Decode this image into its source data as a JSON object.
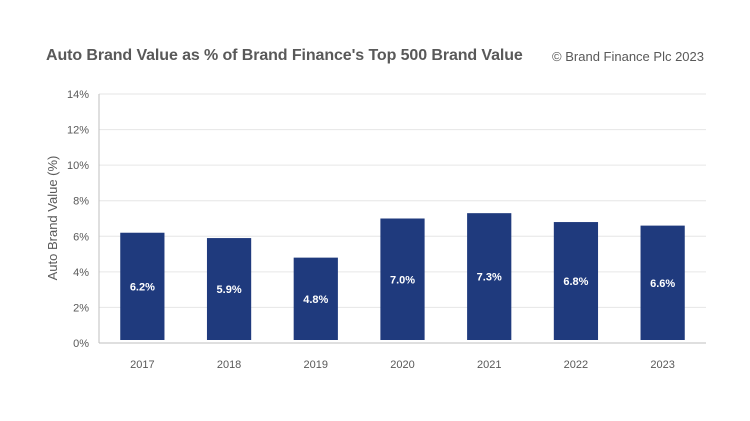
{
  "chart_data": {
    "type": "bar",
    "title": "Auto Brand Value as % of Brand Finance's Top 500 Brand Value",
    "credit": "© Brand Finance Plc 2023",
    "xlabel": "",
    "ylabel": "Auto Brand Value (%)",
    "categories": [
      "2017",
      "2018",
      "2019",
      "2020",
      "2021",
      "2022",
      "2023"
    ],
    "values": [
      6.2,
      5.9,
      4.8,
      7.0,
      7.3,
      6.8,
      6.6
    ],
    "data_labels": [
      "6.2%",
      "5.9%",
      "4.8%",
      "7.0%",
      "7.3%",
      "6.8%",
      "6.6%"
    ],
    "ylim": [
      0,
      14
    ],
    "yticks": [
      0,
      2,
      4,
      6,
      8,
      10,
      12,
      14
    ],
    "ytick_labels": [
      "0%",
      "2%",
      "4%",
      "6%",
      "8%",
      "10%",
      "12%",
      "14%"
    ],
    "grid": true,
    "bar_color": "#1f3a7d",
    "grid_color": "#e6e6e6"
  }
}
